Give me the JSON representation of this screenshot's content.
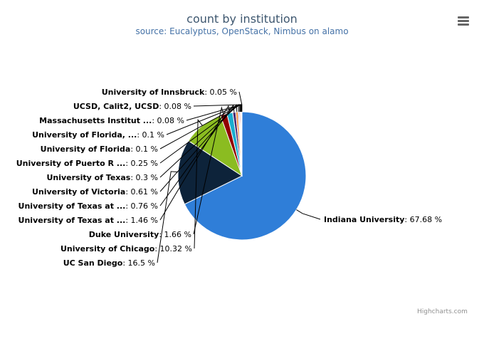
{
  "title": "count by institution",
  "subtitle": "source: Eucalyptus, OpenStack, Nimbus on alamo",
  "credits": "Highcharts.com",
  "menu_icon": "hamburger-menu-icon",
  "chart_data": {
    "type": "pie",
    "title": "count by institution",
    "subtitle": "source: Eucalyptus, OpenStack, Nimbus on alamo",
    "unit": "%",
    "slices": [
      {
        "name": "Indiana University",
        "value": 67.68,
        "color": "#2f7ed8"
      },
      {
        "name": "UC San Diego",
        "value": 16.5,
        "color": "#0d233a"
      },
      {
        "name": "University of Chicago",
        "value": 10.32,
        "color": "#8bbc21"
      },
      {
        "name": "Duke University",
        "value": 1.66,
        "color": "#910000"
      },
      {
        "name": "University of Texas at ...",
        "value": 1.46,
        "color": "#1aadce"
      },
      {
        "name": "University of Texas at ...",
        "value": 0.76,
        "color": "#492970"
      },
      {
        "name": "University of Victoria",
        "value": 0.61,
        "color": "#f28f43"
      },
      {
        "name": "University of Texas",
        "value": 0.3,
        "color": "#77a1e5"
      },
      {
        "name": "University of Puerto R ...",
        "value": 0.25,
        "color": "#c42525"
      },
      {
        "name": "University of Florida",
        "value": 0.1,
        "color": "#a6c96a"
      },
      {
        "name": "University of Florida, ...",
        "value": 0.1,
        "color": "#2f7ed8"
      },
      {
        "name": "Massachusetts Institut ...",
        "value": 0.08,
        "color": "#0d233a"
      },
      {
        "name": "UCSD, Calit2, UCSD",
        "value": 0.08,
        "color": "#8bbc21"
      },
      {
        "name": "University of Innsbruck",
        "value": 0.05,
        "color": "#910000"
      }
    ]
  }
}
